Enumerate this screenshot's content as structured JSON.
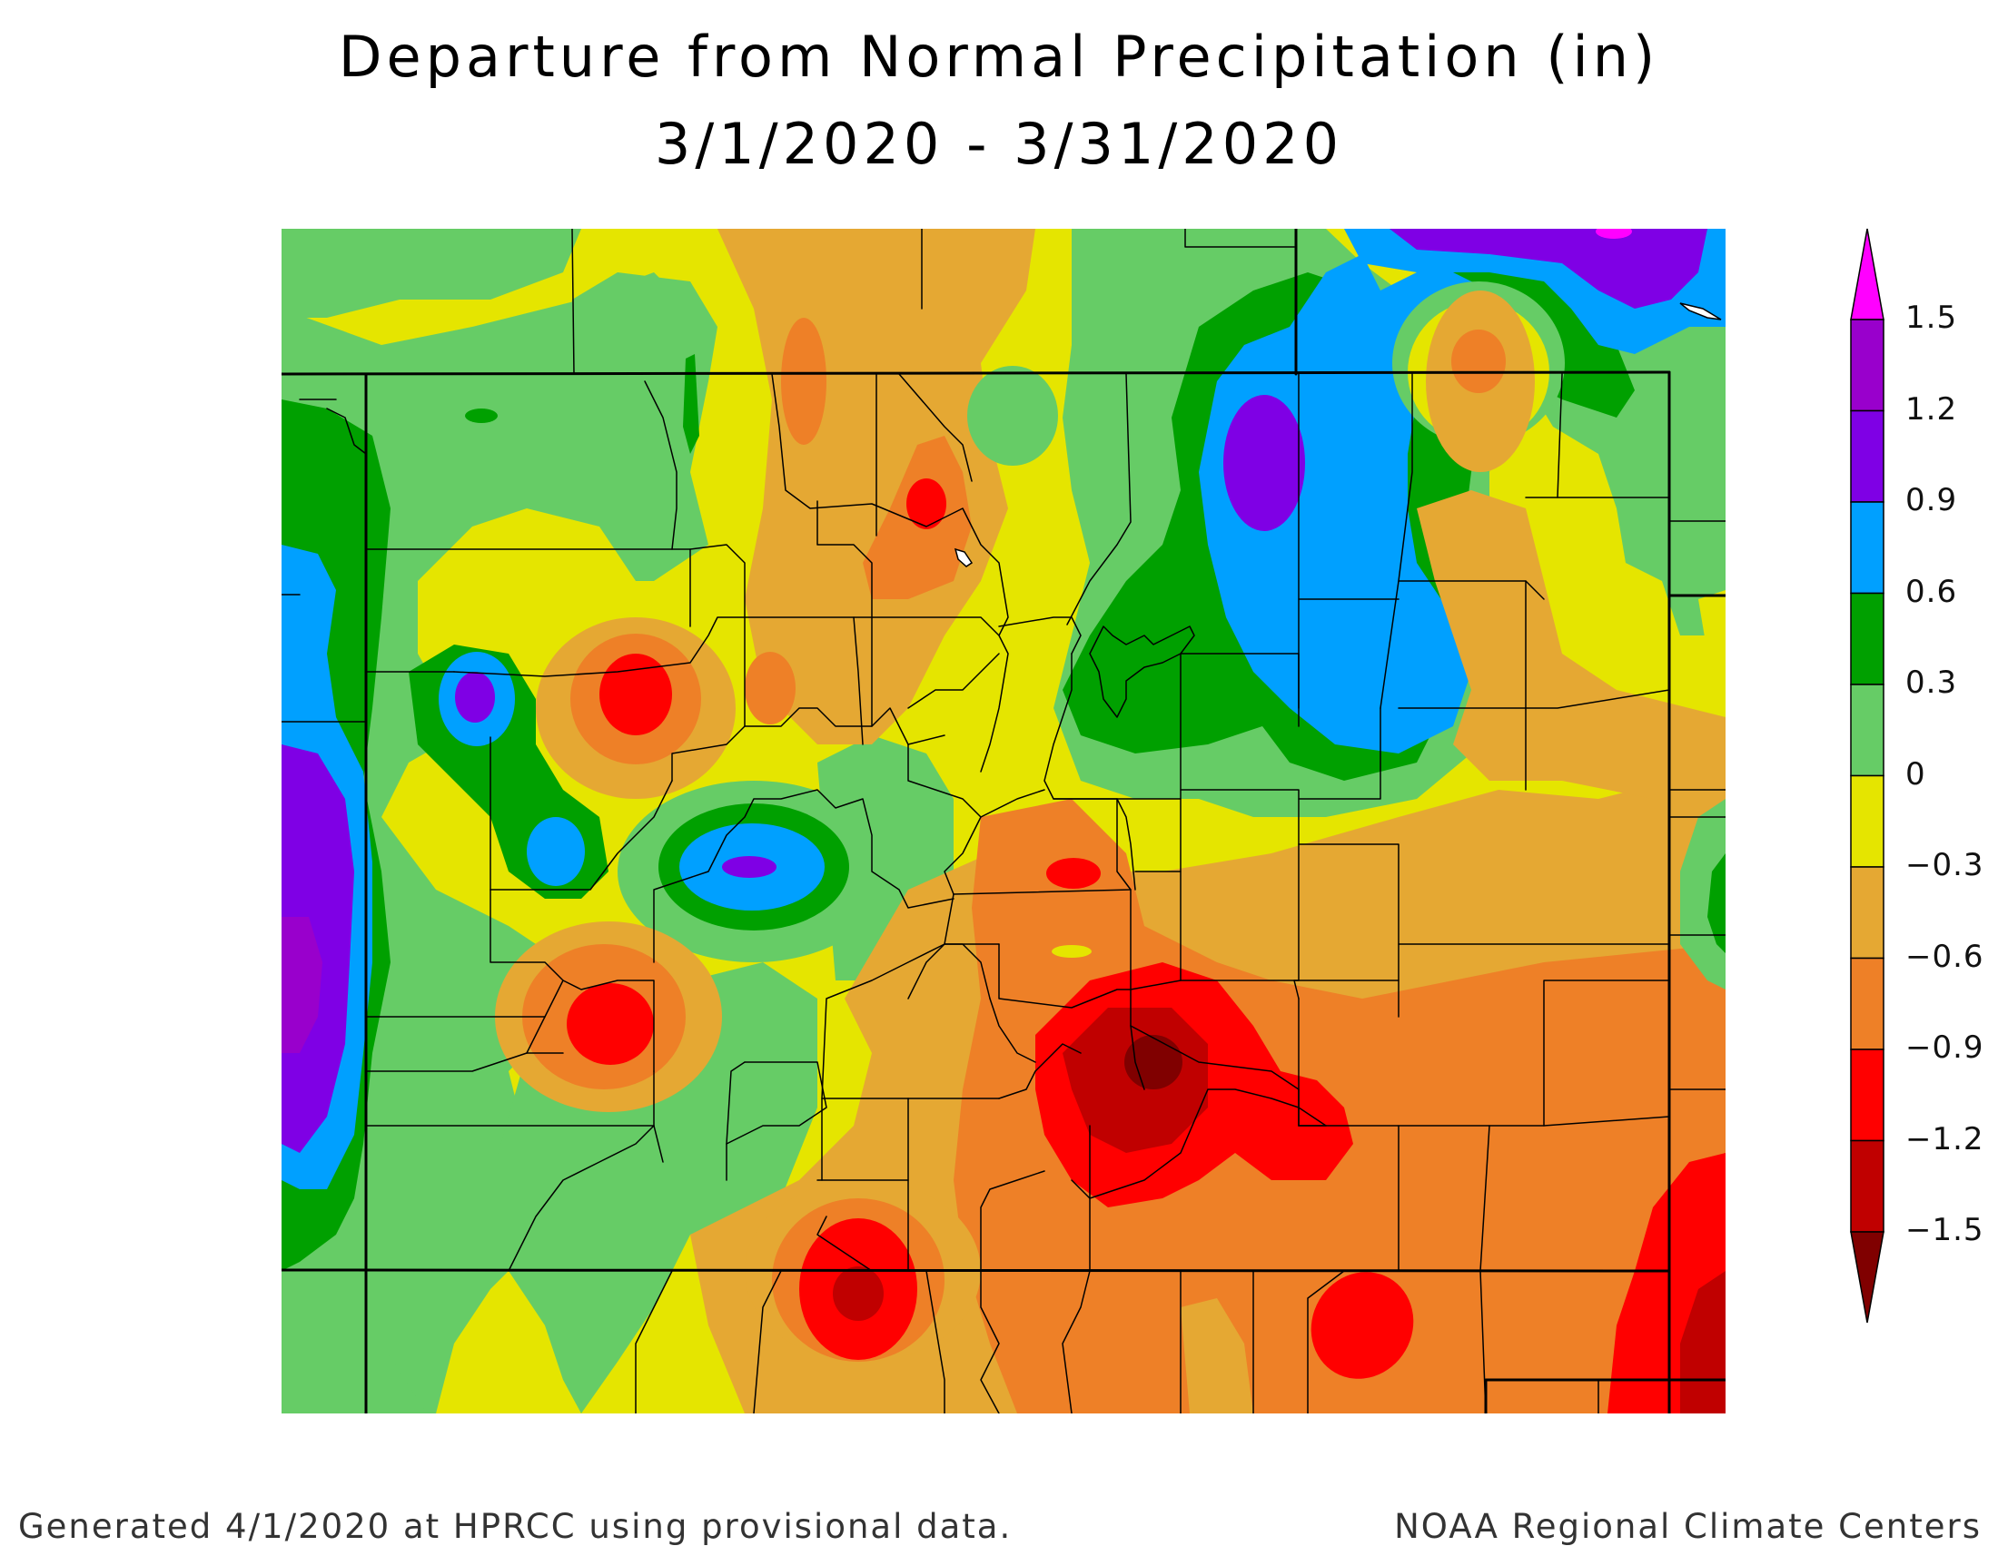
{
  "title": {
    "line1": "Departure from Normal Precipitation (in)",
    "line2": "3/1/2020 - 3/31/2020"
  },
  "footer": {
    "left": "Generated 4/1/2020 at HPRCC using provisional data.",
    "right": "NOAA Regional Climate Centers"
  },
  "legend": {
    "ticks": [
      "1.5",
      "1.2",
      "0.9",
      "0.6",
      "0.3",
      "0",
      "−0.3",
      "−0.6",
      "−0.9",
      "−1.2",
      "−1.5"
    ],
    "colors": [
      "#ff00ff",
      "#9900cc",
      "#7f00e5",
      "#00a0ff",
      "#00a000",
      "#66cc66",
      "#e5e500",
      "#e5a833",
      "#ee8027",
      "#ff0000",
      "#c00000",
      "#800000"
    ],
    "over_color": "#ff00ff",
    "under_color": "#800000"
  },
  "palette": {
    "yellow": "#e5e500",
    "lightgreen": "#66cc66",
    "green": "#00a000",
    "blue": "#00a0ff",
    "purple": "#7f00e5",
    "violet": "#9900cc",
    "magenta": "#ff00ff",
    "tan": "#e5a833",
    "orange": "#ee8027",
    "red": "#ff0000",
    "darkred": "#c00000",
    "maroon": "#800000"
  }
}
